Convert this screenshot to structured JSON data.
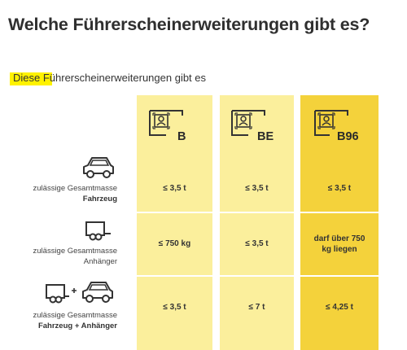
{
  "title": "Welche Führerscheinerweiterungen gibt es?",
  "subtitle": "Diese Führerscheinerweiterungen gibt es",
  "colors": {
    "highlight": "#fff200",
    "column_light": "#fbef9c",
    "column_dark": "#f4d23b"
  },
  "columns": [
    {
      "label": "B",
      "icon": "license-card-icon"
    },
    {
      "label": "BE",
      "icon": "license-card-icon"
    },
    {
      "label": "B96",
      "icon": "license-card-icon"
    }
  ],
  "rows": [
    {
      "icon": "car-icon",
      "label_line1": "zulässige Gesamtmasse",
      "label_line2": "Fahrzeug",
      "values": [
        "≤ 3,5 t",
        "≤ 3,5 t",
        "≤ 3,5 t"
      ]
    },
    {
      "icon": "trailer-icon",
      "label_line1": "zulässige Gesamtmasse",
      "label_line2": "Anhänger",
      "values": [
        "≤ 750 kg",
        "≤ 3,5 t",
        "darf über 750 kg liegen"
      ]
    },
    {
      "icon": "car-with-trailer-icon",
      "label_line1": "zulässige Gesamtmasse",
      "label_line2": "Fahrzeug + Anhänger",
      "values": [
        "≤ 3,5 t",
        "≤ 7 t",
        "≤ 4,25 t"
      ]
    }
  ]
}
